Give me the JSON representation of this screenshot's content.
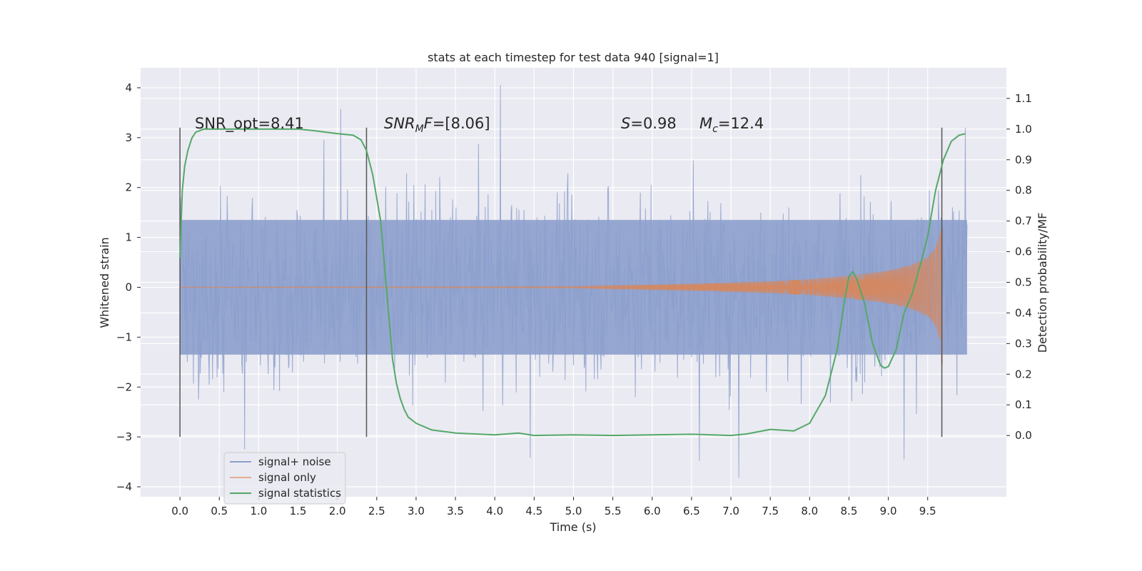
{
  "chart_data": {
    "type": "line",
    "title": "stats at each timestep for test data 940 [signal=1]",
    "xlabel": "Time (s)",
    "ylabel_left": "Whitened strain",
    "ylabel_right": "Detection probability/MF",
    "xlim": [
      -0.5,
      10.5
    ],
    "ylim_left": [
      -4.2,
      4.4
    ],
    "ylim_right": [
      -0.2,
      1.2
    ],
    "x_ticks": [
      "0.0",
      "0.5",
      "1.0",
      "1.5",
      "2.0",
      "2.5",
      "3.0",
      "3.5",
      "4.0",
      "4.5",
      "5.0",
      "5.5",
      "6.0",
      "6.5",
      "7.0",
      "7.5",
      "8.0",
      "8.5",
      "9.0",
      "9.5"
    ],
    "y_left_ticks": [
      "4",
      "3",
      "2",
      "1",
      "0",
      "−1",
      "−2",
      "−3",
      "−4"
    ],
    "y_right_ticks": [
      "1.1",
      "1.0",
      "0.9",
      "0.8",
      "0.7",
      "0.6",
      "0.5",
      "0.4",
      "0.3",
      "0.2",
      "0.1",
      "0.0"
    ],
    "grid": true,
    "legend_position": "lower-left",
    "colors": {
      "background": "#eaeaf2",
      "grid": "#ffffff",
      "noise": "#8c9fcc",
      "signal": "#dd8452",
      "statistics": "#55a868",
      "vlines": "#555555"
    },
    "series": [
      {
        "name": "signal+ noise",
        "x_range": [
          0.0,
          10.0
        ],
        "y_typical_range": [
          -2.5,
          2.5
        ],
        "y_peaks": [
          {
            "x": 0.82,
            "y": -3.25
          },
          {
            "x": 2.04,
            "y": 3.57
          },
          {
            "x": 4.07,
            "y": 4.05
          },
          {
            "x": 4.45,
            "y": -3.42
          },
          {
            "x": 6.6,
            "y": -3.48
          },
          {
            "x": 7.1,
            "y": -3.82
          },
          {
            "x": 9.2,
            "y": -3.45
          },
          {
            "x": 9.98,
            "y": 3.2
          }
        ]
      },
      {
        "name": "signal only",
        "x_range": [
          0.0,
          9.68
        ],
        "envelope": [
          [
            0.0,
            0.005
          ],
          [
            5.0,
            0.015
          ],
          [
            6.5,
            0.07
          ],
          [
            7.5,
            0.12
          ],
          [
            8.0,
            0.16
          ],
          [
            8.5,
            0.23
          ],
          [
            9.0,
            0.33
          ],
          [
            9.3,
            0.45
          ],
          [
            9.5,
            0.6
          ],
          [
            9.6,
            0.8
          ],
          [
            9.68,
            1.2
          ]
        ]
      },
      {
        "name": "signal statistics",
        "axis": "right",
        "x": [
          0.0,
          0.03,
          0.06,
          0.1,
          0.15,
          0.2,
          0.3,
          0.5,
          1.0,
          1.5,
          1.7,
          2.0,
          2.2,
          2.3,
          2.37,
          2.45,
          2.55,
          2.6,
          2.65,
          2.7,
          2.75,
          2.8,
          2.85,
          2.9,
          3.0,
          3.2,
          3.5,
          4.0,
          4.3,
          4.5,
          5.0,
          5.5,
          6.0,
          6.5,
          7.0,
          7.2,
          7.5,
          7.8,
          8.0,
          8.2,
          8.35,
          8.45,
          8.5,
          8.55,
          8.6,
          8.7,
          8.8,
          8.9,
          8.95,
          9.0,
          9.1,
          9.2,
          9.3,
          9.4,
          9.5,
          9.6,
          9.7,
          9.8,
          9.9,
          9.98
        ],
        "y": [
          0.58,
          0.8,
          0.88,
          0.93,
          0.97,
          0.99,
          1.0,
          1.0,
          1.0,
          1.0,
          0.995,
          0.985,
          0.98,
          0.965,
          0.93,
          0.85,
          0.7,
          0.55,
          0.4,
          0.25,
          0.17,
          0.12,
          0.085,
          0.06,
          0.04,
          0.018,
          0.008,
          0.002,
          0.008,
          0.0,
          0.002,
          0.0,
          0.002,
          0.004,
          0.0,
          0.005,
          0.02,
          0.015,
          0.04,
          0.13,
          0.28,
          0.45,
          0.52,
          0.535,
          0.51,
          0.43,
          0.3,
          0.23,
          0.22,
          0.225,
          0.28,
          0.4,
          0.46,
          0.55,
          0.65,
          0.8,
          0.9,
          0.96,
          0.98,
          0.985
        ]
      }
    ],
    "vertical_lines": [
      {
        "x": 0.0,
        "y_range": [
          -3.0,
          3.2
        ]
      },
      {
        "x": 2.37,
        "y_range": [
          -3.0,
          3.2
        ]
      },
      {
        "x": 9.68,
        "y_range": [
          -3.0,
          3.2
        ]
      }
    ],
    "annotations": [
      {
        "text": "SNR_opt=8.41",
        "x": 0.2,
        "y": 3.28
      },
      {
        "text": "SNR_MF=[8.06]",
        "x": 2.6,
        "y": 3.28
      },
      {
        "text": "S=0.98",
        "x": 5.6,
        "y": 3.28
      },
      {
        "text": "M_c=12.4",
        "x": 6.6,
        "y": 3.28
      }
    ]
  }
}
